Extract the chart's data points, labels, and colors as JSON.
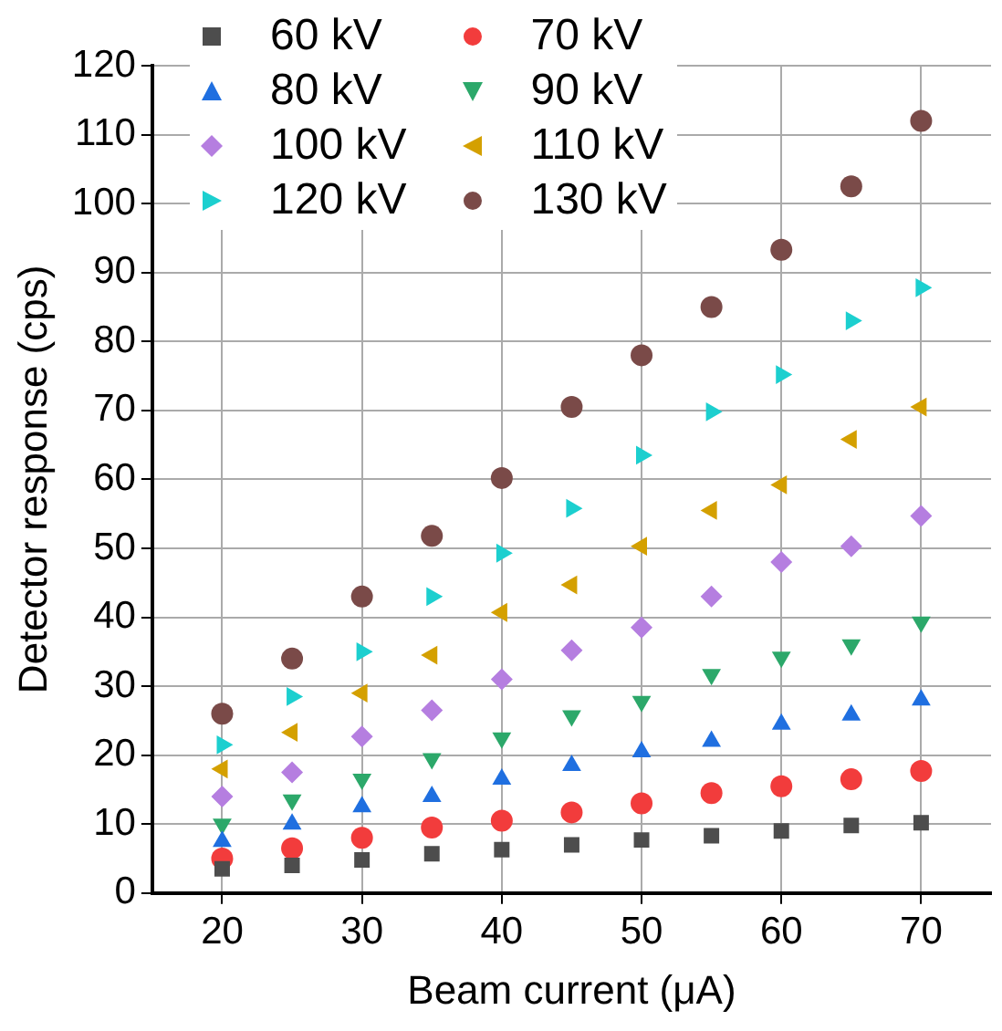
{
  "chart_data": {
    "type": "scatter",
    "xlabel": "Beam current (μA)",
    "ylabel": "Detector response (cps)",
    "x": [
      20,
      25,
      30,
      35,
      40,
      45,
      50,
      55,
      60,
      65,
      70
    ],
    "xlim": [
      15,
      75
    ],
    "xticks": [
      20,
      30,
      40,
      50,
      60,
      70
    ],
    "ylim": [
      0,
      120
    ],
    "yticks": [
      0,
      10,
      20,
      30,
      40,
      50,
      60,
      70,
      80,
      90,
      100,
      110,
      120
    ],
    "grid": true,
    "legend": "top left",
    "series": [
      {
        "name": "60 kV",
        "color": "#4d4d4d",
        "marker": "square",
        "values": [
          3.5,
          4,
          4.8,
          5.7,
          6.3,
          7,
          7.7,
          8.3,
          9,
          9.8,
          10.2
        ]
      },
      {
        "name": "70 kV",
        "color": "#f23c3c",
        "marker": "circle",
        "values": [
          5,
          6.5,
          8,
          9.5,
          10.5,
          11.7,
          13,
          14.5,
          15.5,
          16.5,
          17.7
        ]
      },
      {
        "name": "80 kV",
        "color": "#1f6fe0",
        "marker": "triangle",
        "values": [
          7.5,
          10,
          12.5,
          14,
          16.5,
          18.5,
          20.5,
          22,
          24.5,
          25.8,
          28
        ]
      },
      {
        "name": "90 kV",
        "color": "#2ca86a",
        "marker": "triangle-down",
        "values": [
          10,
          13.5,
          16.5,
          19.5,
          22.5,
          25.7,
          27.8,
          31.7,
          34.2,
          36,
          39.3
        ]
      },
      {
        "name": "100 kV",
        "color": "#b57ee0",
        "marker": "diamond",
        "values": [
          14,
          17.5,
          22.7,
          26.5,
          31,
          35.2,
          38.5,
          43,
          48,
          50.3,
          54.7
        ]
      },
      {
        "name": "110 kV",
        "color": "#d4a000",
        "marker": "triangle-left",
        "values": [
          18,
          23.3,
          29,
          34.5,
          40.7,
          44.7,
          50.3,
          55.5,
          59.2,
          65.8,
          70.5
        ]
      },
      {
        "name": "120 kV",
        "color": "#1ccfcf",
        "marker": "triangle-right",
        "values": [
          21.5,
          28.5,
          35,
          43,
          49.3,
          55.8,
          63.5,
          69.8,
          75.2,
          83,
          87.8
        ]
      },
      {
        "name": "130 kV",
        "color": "#7a4a48",
        "marker": "circle",
        "values": [
          26,
          34,
          43,
          51.8,
          60.2,
          70.5,
          78,
          85,
          93.3,
          102.5,
          112
        ]
      }
    ]
  }
}
